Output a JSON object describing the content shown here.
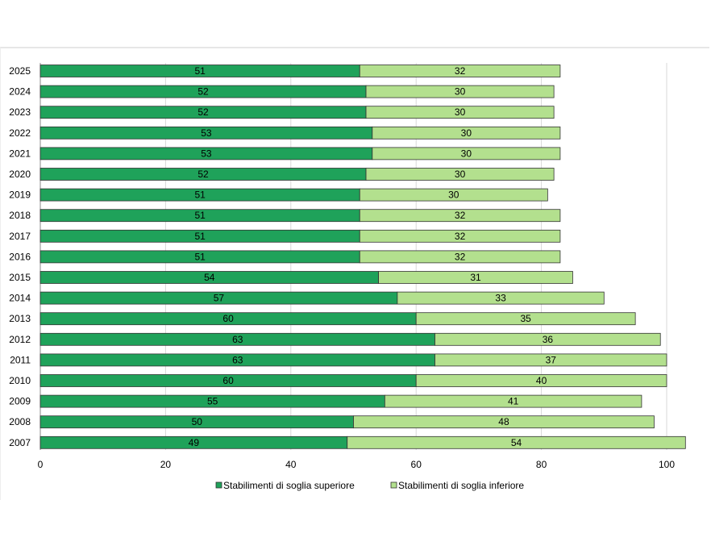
{
  "chart_data": {
    "type": "bar",
    "orientation": "horizontal",
    "stacked": true,
    "categories": [
      "2025",
      "2024",
      "2023",
      "2022",
      "2021",
      "2020",
      "2019",
      "2018",
      "2017",
      "2016",
      "2015",
      "2014",
      "2013",
      "2012",
      "2011",
      "2010",
      "2009",
      "2008",
      "2007"
    ],
    "series": [
      {
        "name": "Stabilimenti di soglia superiore",
        "color": "#1fa25a",
        "values": [
          51,
          52,
          52,
          53,
          53,
          52,
          51,
          51,
          51,
          51,
          54,
          57,
          60,
          63,
          63,
          60,
          55,
          50,
          49
        ]
      },
      {
        "name": "Stabilimenti di soglia inferiore",
        "color": "#b3e08e",
        "values": [
          32,
          30,
          30,
          30,
          30,
          30,
          30,
          32,
          32,
          32,
          31,
          33,
          35,
          36,
          37,
          40,
          41,
          48,
          54
        ]
      }
    ],
    "xlim": [
      0,
      100
    ],
    "xticks": [
      "0",
      "20",
      "40",
      "60",
      "80",
      "100"
    ],
    "grid": "vertical",
    "legend_position": "bottom",
    "title": "",
    "xlabel": "",
    "ylabel": ""
  }
}
